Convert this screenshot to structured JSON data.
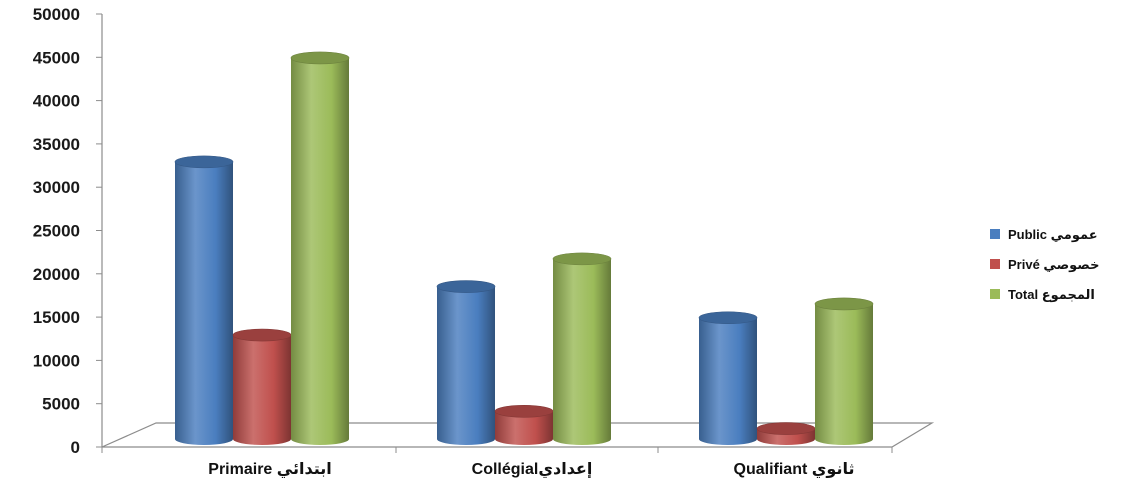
{
  "chart_data": {
    "type": "bar",
    "style": "3d-cylinder",
    "categories": [
      "Primaire ابتدائي",
      "Collégialإعدادي",
      "Qualifiant ثانوي"
    ],
    "series": [
      {
        "name": "Public عمومي",
        "color": "#4a7ebf",
        "values": [
          32000,
          17600,
          14000
        ]
      },
      {
        "name": "Privé خصوصي",
        "color": "#c0504d",
        "values": [
          12000,
          3200,
          1200
        ]
      },
      {
        "name": "Total المجموع",
        "color": "#9bbb59",
        "values": [
          44000,
          20800,
          15600
        ]
      }
    ],
    "ylim": [
      0,
      50000
    ],
    "y_ticks": [
      "0",
      "5000",
      "10000",
      "15000",
      "20000",
      "25000",
      "30000",
      "35000",
      "40000",
      "45000",
      "50000"
    ],
    "grid": false,
    "legend_position": "right"
  }
}
